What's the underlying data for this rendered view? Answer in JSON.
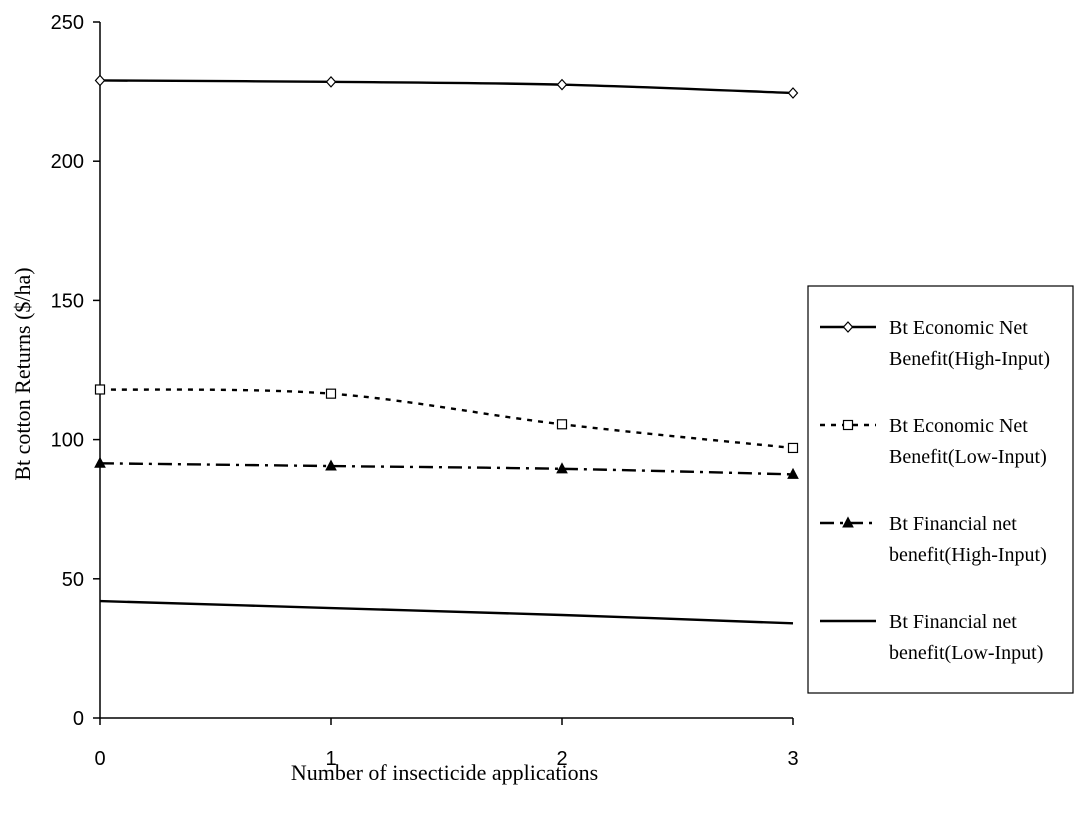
{
  "chart_data": {
    "type": "line",
    "title": "",
    "xlabel": "Number of insecticide applications",
    "ylabel": "Bt cotton Returns ($/ha)",
    "x": [
      0,
      1,
      2,
      3
    ],
    "xlim": [
      0,
      3
    ],
    "ylim": [
      0,
      250
    ],
    "yticks": [
      0,
      50,
      100,
      150,
      200,
      250
    ],
    "xticks": [
      0,
      1,
      2,
      3
    ],
    "grid": false,
    "legend_position": "right",
    "series": [
      {
        "name_lines": [
          "Bt Economic Net",
          "Benefit(High-Input)"
        ],
        "values": [
          229,
          228.5,
          227.5,
          224.5
        ],
        "line": "solid",
        "marker": "diamond-open",
        "color": "#000000"
      },
      {
        "name_lines": [
          "Bt Economic Net",
          "Benefit(Low-Input)"
        ],
        "values": [
          118,
          116.5,
          105.5,
          97
        ],
        "line": "dotted",
        "marker": "square-open",
        "color": "#000000"
      },
      {
        "name_lines": [
          "Bt Financial net",
          "benefit(High-Input)"
        ],
        "values": [
          91.5,
          90.5,
          89.5,
          87.5
        ],
        "line": "dashdot",
        "marker": "triangle-filled",
        "color": "#000000"
      },
      {
        "name_lines": [
          "Bt Financial net",
          "benefit(Low-Input)"
        ],
        "values": [
          42,
          39.5,
          37,
          34
        ],
        "line": "solid",
        "marker": "none",
        "color": "#000000"
      }
    ]
  }
}
